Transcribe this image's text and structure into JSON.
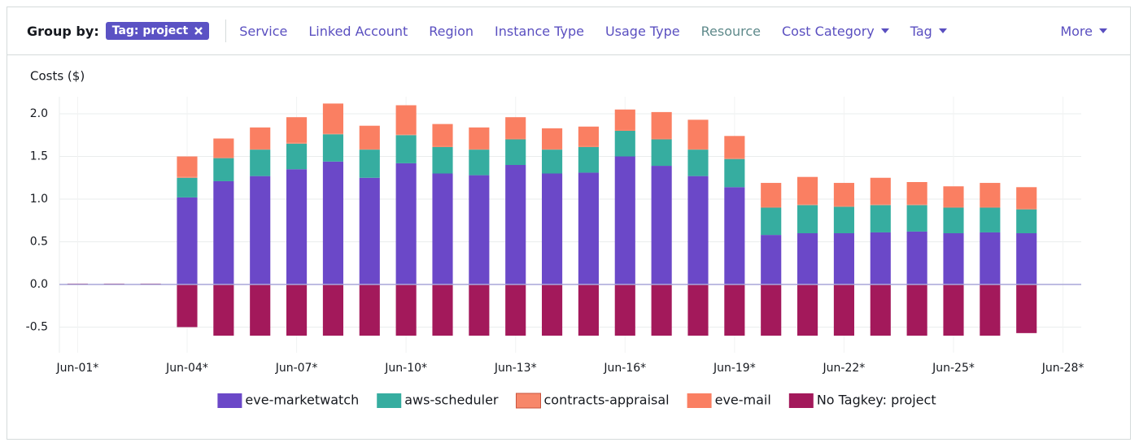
{
  "toolbar": {
    "label": "Group by:",
    "chip": "Tag: project",
    "options": [
      "Service",
      "Linked Account",
      "Region",
      "Instance Type",
      "Usage Type",
      "Resource",
      "Cost Category",
      "Tag"
    ],
    "more": "More"
  },
  "chart_data": {
    "type": "bar",
    "stacked": true,
    "ylabel": "Costs ($)",
    "categories": [
      "Jun-01*",
      null,
      null,
      "Jun-04*",
      null,
      null,
      "Jun-07*",
      null,
      null,
      "Jun-10*",
      null,
      null,
      "Jun-13*",
      null,
      null,
      "Jun-16*",
      null,
      null,
      "Jun-19*",
      null,
      null,
      "Jun-22*",
      null,
      null,
      "Jun-25*",
      null,
      null,
      "Jun-28*"
    ],
    "series": [
      {
        "name": "eve-marketwatch",
        "color": "#6b48c8",
        "values": [
          null,
          null,
          null,
          1.02,
          1.21,
          1.27,
          1.35,
          1.44,
          1.25,
          1.42,
          1.3,
          1.28,
          1.4,
          1.3,
          1.31,
          1.5,
          1.39,
          1.27,
          1.14,
          0.58,
          0.6,
          0.6,
          0.61,
          0.62,
          0.6,
          0.61,
          0.6,
          null
        ]
      },
      {
        "name": "aws-scheduler",
        "color": "#36ada0",
        "values": [
          null,
          null,
          null,
          0.23,
          0.27,
          0.31,
          0.3,
          0.32,
          0.33,
          0.33,
          0.31,
          0.3,
          0.3,
          0.28,
          0.3,
          0.3,
          0.31,
          0.31,
          0.33,
          0.32,
          0.33,
          0.31,
          0.32,
          0.31,
          0.3,
          0.29,
          0.28,
          null
        ]
      },
      {
        "name": "contracts-appraisal",
        "color": "#f7876a",
        "values": [
          null,
          null,
          null,
          0.01,
          0.01,
          0.01,
          0.01,
          0.01,
          0.01,
          0.01,
          0.01,
          0.01,
          0.01,
          0.01,
          0.01,
          0.01,
          0.01,
          0.01,
          0.01,
          0.01,
          0.01,
          0.01,
          0.01,
          0.01,
          0.01,
          0.01,
          0.01,
          null
        ]
      },
      {
        "name": "eve-mail",
        "color": "#fa7f62",
        "values": [
          null,
          null,
          null,
          0.24,
          0.22,
          0.25,
          0.3,
          0.35,
          0.27,
          0.34,
          0.26,
          0.25,
          0.25,
          0.24,
          0.23,
          0.24,
          0.31,
          0.34,
          0.26,
          0.28,
          0.32,
          0.27,
          0.31,
          0.26,
          0.24,
          0.28,
          0.25,
          null
        ]
      },
      {
        "name": "No Tagkey: project",
        "color": "#a3195b",
        "values": [
          0.01,
          0.01,
          0.01,
          -0.5,
          -0.6,
          -0.6,
          -0.6,
          -0.6,
          -0.6,
          -0.6,
          -0.6,
          -0.6,
          -0.6,
          -0.6,
          -0.6,
          -0.6,
          -0.6,
          -0.6,
          -0.6,
          -0.6,
          -0.6,
          -0.6,
          -0.6,
          -0.6,
          -0.6,
          -0.6,
          -0.57,
          null
        ]
      }
    ],
    "ylim": [
      -0.8,
      2.2
    ],
    "yticks": [
      -0.5,
      {
        "value": 0,
        "label": "0.0"
      },
      0.5,
      {
        "value": 1,
        "label": "1.0"
      },
      1.5,
      {
        "value": 2,
        "label": "2.0"
      }
    ],
    "grid": true,
    "legend": "bottom"
  }
}
